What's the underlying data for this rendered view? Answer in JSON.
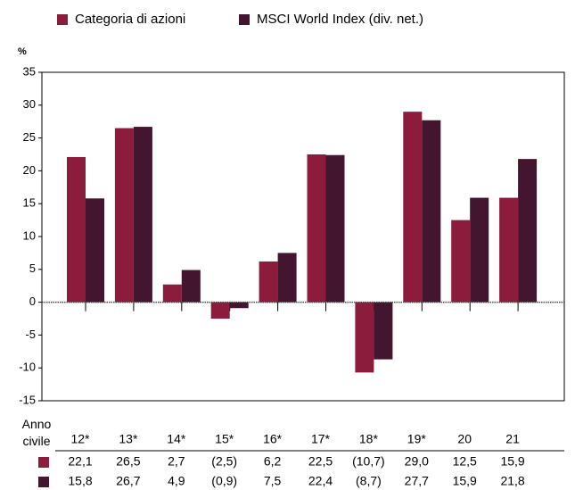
{
  "chart_data": {
    "type": "bar",
    "y_label": "%",
    "table_label": "Anno civile",
    "categories": [
      "12*",
      "13*",
      "14*",
      "15*",
      "16*",
      "17*",
      "18*",
      "19*",
      "20",
      "21"
    ],
    "series": [
      {
        "name": "Categoria di azioni",
        "color": "#8b1c3b",
        "values": [
          22.1,
          26.5,
          2.7,
          -2.5,
          6.2,
          22.5,
          -10.7,
          29.0,
          12.5,
          15.9
        ],
        "value_labels": [
          "22,1",
          "26,5",
          "2,7",
          "(2,5)",
          "6,2",
          "22,5",
          "(10,7)",
          "29,0",
          "12,5",
          "15,9"
        ]
      },
      {
        "name": "MSCI World Index (div. net.)",
        "color": "#43152e",
        "values": [
          15.8,
          26.7,
          4.9,
          -0.9,
          7.5,
          22.4,
          -8.7,
          27.7,
          15.9,
          21.8
        ],
        "value_labels": [
          "15,8",
          "26,7",
          "4,9",
          "(0,9)",
          "7,5",
          "22,4",
          "(8,7)",
          "27,7",
          "15,9",
          "21,8"
        ]
      }
    ],
    "ylim": [
      -15,
      35
    ],
    "yticks": [
      -15,
      -10,
      -5,
      0,
      5,
      10,
      15,
      20,
      25,
      30,
      35
    ]
  }
}
